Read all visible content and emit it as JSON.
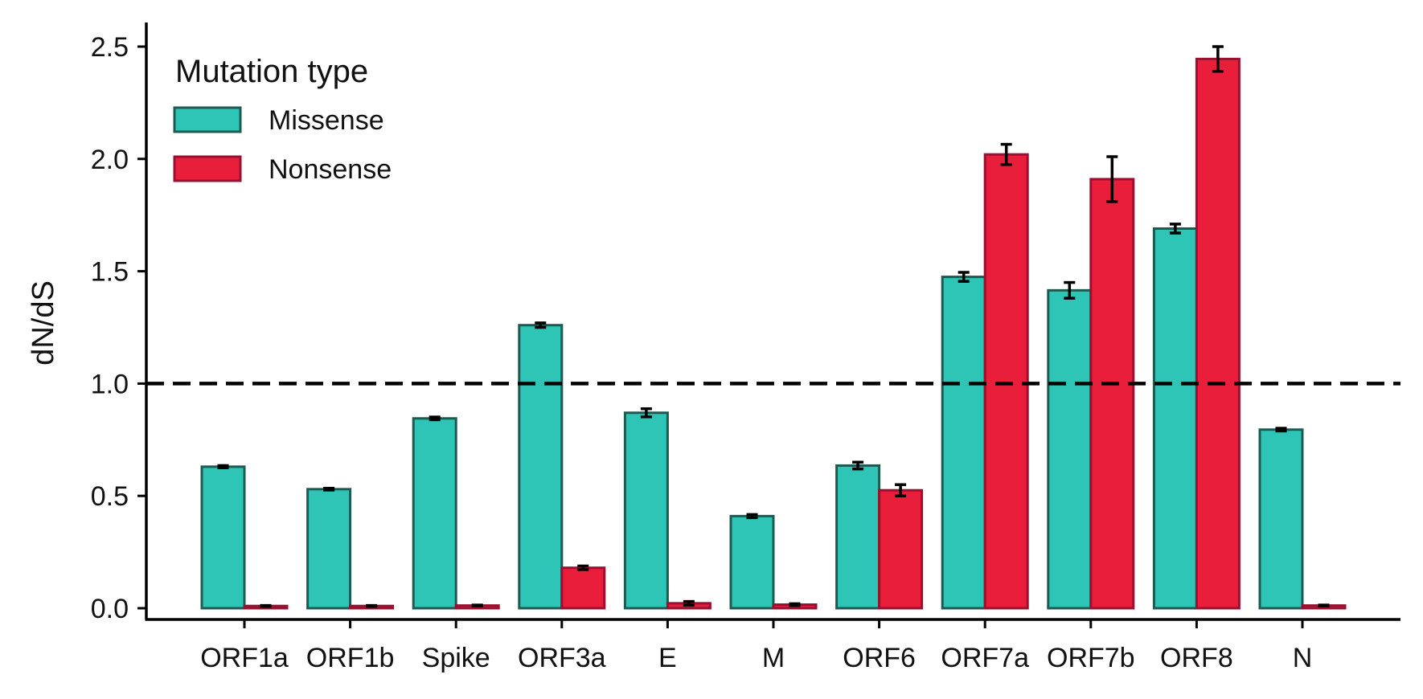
{
  "chart_data": {
    "type": "bar",
    "title": "",
    "xlabel": "",
    "ylabel": "dN/dS",
    "ylim": [
      0,
      2.6
    ],
    "yticks": [
      "0.0",
      "0.5",
      "1.0",
      "1.5",
      "2.0",
      "2.5"
    ],
    "categories": [
      "ORF1a",
      "ORF1b",
      "Spike",
      "ORF3a",
      "E",
      "M",
      "ORF6",
      "ORF7a",
      "ORF7b",
      "ORF8",
      "N"
    ],
    "reference_line": {
      "y": 1.0,
      "style": "dashed"
    },
    "legend": {
      "title": "Mutation type",
      "position": "top-left"
    },
    "grid": false,
    "series": [
      {
        "name": "Missense",
        "color": "#2ec4b6",
        "edge_color": "#1d5a50",
        "values": [
          0.63,
          0.53,
          0.845,
          1.26,
          0.87,
          0.41,
          0.635,
          1.475,
          1.415,
          1.69,
          0.795
        ],
        "errors": [
          0.005,
          0.004,
          0.006,
          0.01,
          0.018,
          0.007,
          0.015,
          0.02,
          0.035,
          0.02,
          0.006
        ]
      },
      {
        "name": "Nonsense",
        "color": "#e81e3a",
        "edge_color": "#9a1030",
        "values": [
          0.01,
          0.01,
          0.012,
          0.18,
          0.022,
          0.016,
          0.525,
          2.02,
          1.91,
          2.445,
          0.012
        ],
        "errors": [
          0.002,
          0.002,
          0.002,
          0.008,
          0.008,
          0.004,
          0.025,
          0.045,
          0.1,
          0.055,
          0.002
        ]
      }
    ]
  }
}
